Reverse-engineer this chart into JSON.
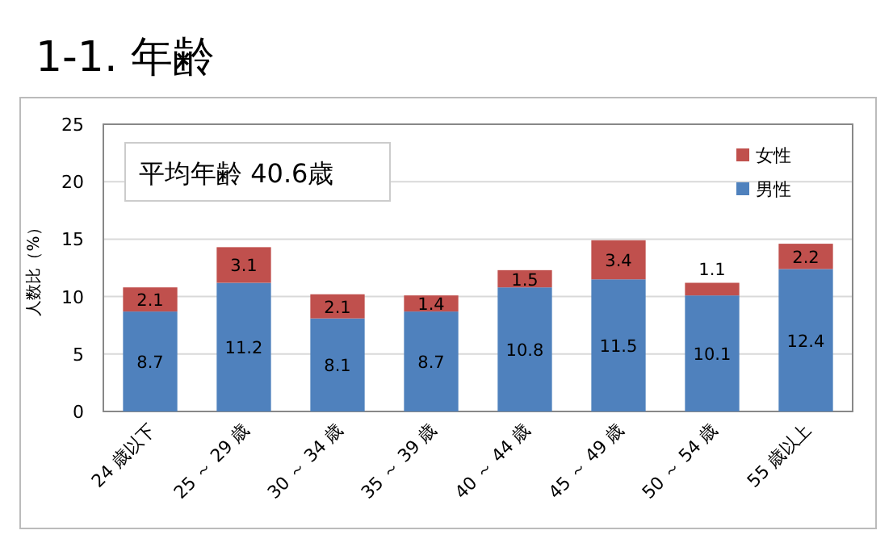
{
  "chart_data": {
    "type": "bar",
    "title": "1-1. 年齢",
    "ylabel": "人数比（%）",
    "annotations": [
      "平均年齢  40.6歳"
    ],
    "categories": [
      "24 歳以下",
      "25 ～ 29 歳",
      "30 ～ 34 歳",
      "35 ～ 39 歳",
      "40 ～ 44 歳",
      "45 ～ 49 歳",
      "50 ～ 54 歳",
      "55 歳以上"
    ],
    "series": [
      {
        "name": "男性",
        "color": "#4f81bd",
        "values": [
          8.7,
          11.2,
          8.1,
          8.7,
          10.8,
          11.5,
          10.1,
          12.4
        ]
      },
      {
        "name": "女性",
        "color": "#c0504d",
        "values": [
          2.1,
          3.1,
          2.1,
          1.4,
          1.5,
          3.4,
          1.1,
          2.2
        ]
      }
    ],
    "stacked": true,
    "data_labels": true,
    "ylim": [
      0,
      25
    ],
    "yticks": [
      0,
      5,
      10,
      15,
      20,
      25
    ],
    "grid": "y",
    "legend": "top right"
  }
}
